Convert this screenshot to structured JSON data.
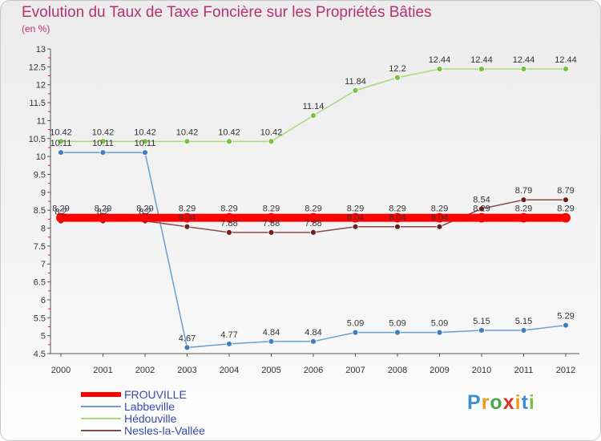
{
  "title": "Evolution du Taux de Taxe Foncière sur les Propriétés Bâties",
  "unit": "(en %)",
  "logo": {
    "text": "Proxiti",
    "colors": [
      "#3f8fd0",
      "#e89c1a",
      "#4aa84a",
      "#d9342b",
      "#e89c1a",
      "#3f8fd0",
      "#7ac143"
    ]
  },
  "colors": {
    "title": "#b5316f",
    "legend_text": "#3a49a8"
  },
  "chart_data": {
    "type": "line",
    "title": "Evolution du Taux de Taxe Foncière sur les Propriétés Bâties",
    "ylabel": "(en %)",
    "xlabel": "",
    "ylim": [
      4.5,
      13
    ],
    "y_ticks": [
      "4.5",
      "5",
      "5.5",
      "6",
      "6.5",
      "7",
      "7.5",
      "8",
      "8.5",
      "9",
      "9.5",
      "10",
      "10.5",
      "11",
      "11.5",
      "12",
      "12.5",
      "13"
    ],
    "categories": [
      "2000",
      "2001",
      "2002",
      "2003",
      "2004",
      "2005",
      "2006",
      "2007",
      "2008",
      "2009",
      "2010",
      "2011",
      "2012"
    ],
    "series": [
      {
        "name": "Labbeville",
        "color": "#6a9ecf",
        "point": "#3f7fc0",
        "values": [
          10.11,
          10.11,
          10.11,
          4.67,
          4.77,
          4.84,
          4.84,
          5.09,
          5.09,
          5.09,
          5.15,
          5.15,
          5.29
        ],
        "labels": [
          "10.11",
          "10.11",
          "10.11",
          "4.67",
          "4.77",
          "4.84",
          "4.84",
          "5.09",
          "5.09",
          "5.09",
          "5.15",
          "5.15",
          "5.29"
        ]
      },
      {
        "name": "Hédouville",
        "color": "#a8d878",
        "point": "#78c040",
        "values": [
          10.42,
          10.42,
          10.42,
          10.42,
          10.42,
          10.42,
          11.14,
          11.84,
          12.2,
          12.44,
          12.44,
          12.44,
          12.44
        ],
        "labels": [
          "10.42",
          "10.42",
          "10.42",
          "10.42",
          "10.42",
          "10.42",
          "11.14",
          "11.84",
          "12.2",
          "12.44",
          "12.44",
          "12.44",
          "12.44"
        ]
      },
      {
        "name": "Nesles-la-Vallée",
        "color": "#8a4a4a",
        "point": "#6e1f1f",
        "values": [
          8.2,
          8.2,
          8.2,
          8.04,
          7.88,
          7.88,
          7.88,
          8.04,
          8.04,
          8.04,
          8.54,
          8.79,
          8.79
        ],
        "labels": [
          "8.2",
          "8.2",
          "8.2",
          "8.04",
          "7.88",
          "7.88",
          "7.88",
          "8.04",
          "8.04",
          "8.04",
          "8.54",
          "8.79",
          "8.79"
        ]
      },
      {
        "name": "FROUVILLE",
        "color": "#ff0000",
        "point": "#ff0000",
        "bold": true,
        "values": [
          8.29,
          8.29,
          8.29,
          8.29,
          8.29,
          8.29,
          8.29,
          8.29,
          8.29,
          8.29,
          8.29,
          8.29,
          8.29
        ],
        "labels": [
          "8.29",
          "8.29",
          "8.29",
          "8.29",
          "8.29",
          "8.29",
          "8.29",
          "8.29",
          "8.29",
          "8.29",
          "8.29",
          "8.29",
          "8.29"
        ]
      }
    ],
    "legend": [
      "FROUVILLE",
      "Labbeville",
      "Hédouville",
      "Nesles-la-Vallée"
    ],
    "legend_position": "bottom-left",
    "grid": false
  }
}
